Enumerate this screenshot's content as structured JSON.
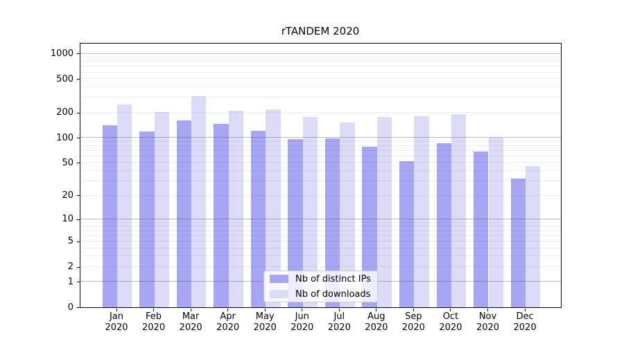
{
  "chart_data": {
    "type": "bar",
    "title": "rTANDEM 2020",
    "categories": [
      "Jan",
      "Feb",
      "Mar",
      "Apr",
      "May",
      "Jun",
      "Jul",
      "Aug",
      "Sep",
      "Oct",
      "Nov",
      "Dec"
    ],
    "year_label": "2020",
    "series": [
      {
        "name": "Nb of distinct IPs",
        "color": "#a6a6f4",
        "values": [
          139,
          119,
          161,
          146,
          120,
          96,
          98,
          77,
          52,
          86,
          68,
          32
        ]
      },
      {
        "name": "Nb of downloads",
        "color": "#dcdcf9",
        "values": [
          245,
          202,
          310,
          210,
          215,
          177,
          151,
          176,
          179,
          191,
          100,
          45
        ]
      }
    ],
    "yscale": "log1p",
    "yticks": [
      0,
      1,
      2,
      5,
      10,
      20,
      50,
      100,
      200,
      500,
      1000
    ],
    "major_gridlines": [
      1,
      10,
      100,
      1000
    ],
    "ylim": [
      0,
      1365
    ],
    "grid": true,
    "legend_position": "lower-center"
  },
  "colors": {
    "background": "#ffffff",
    "axis": "#000000",
    "major_grid": "#b0b0b0",
    "minor_grid": "#ebebeb"
  }
}
